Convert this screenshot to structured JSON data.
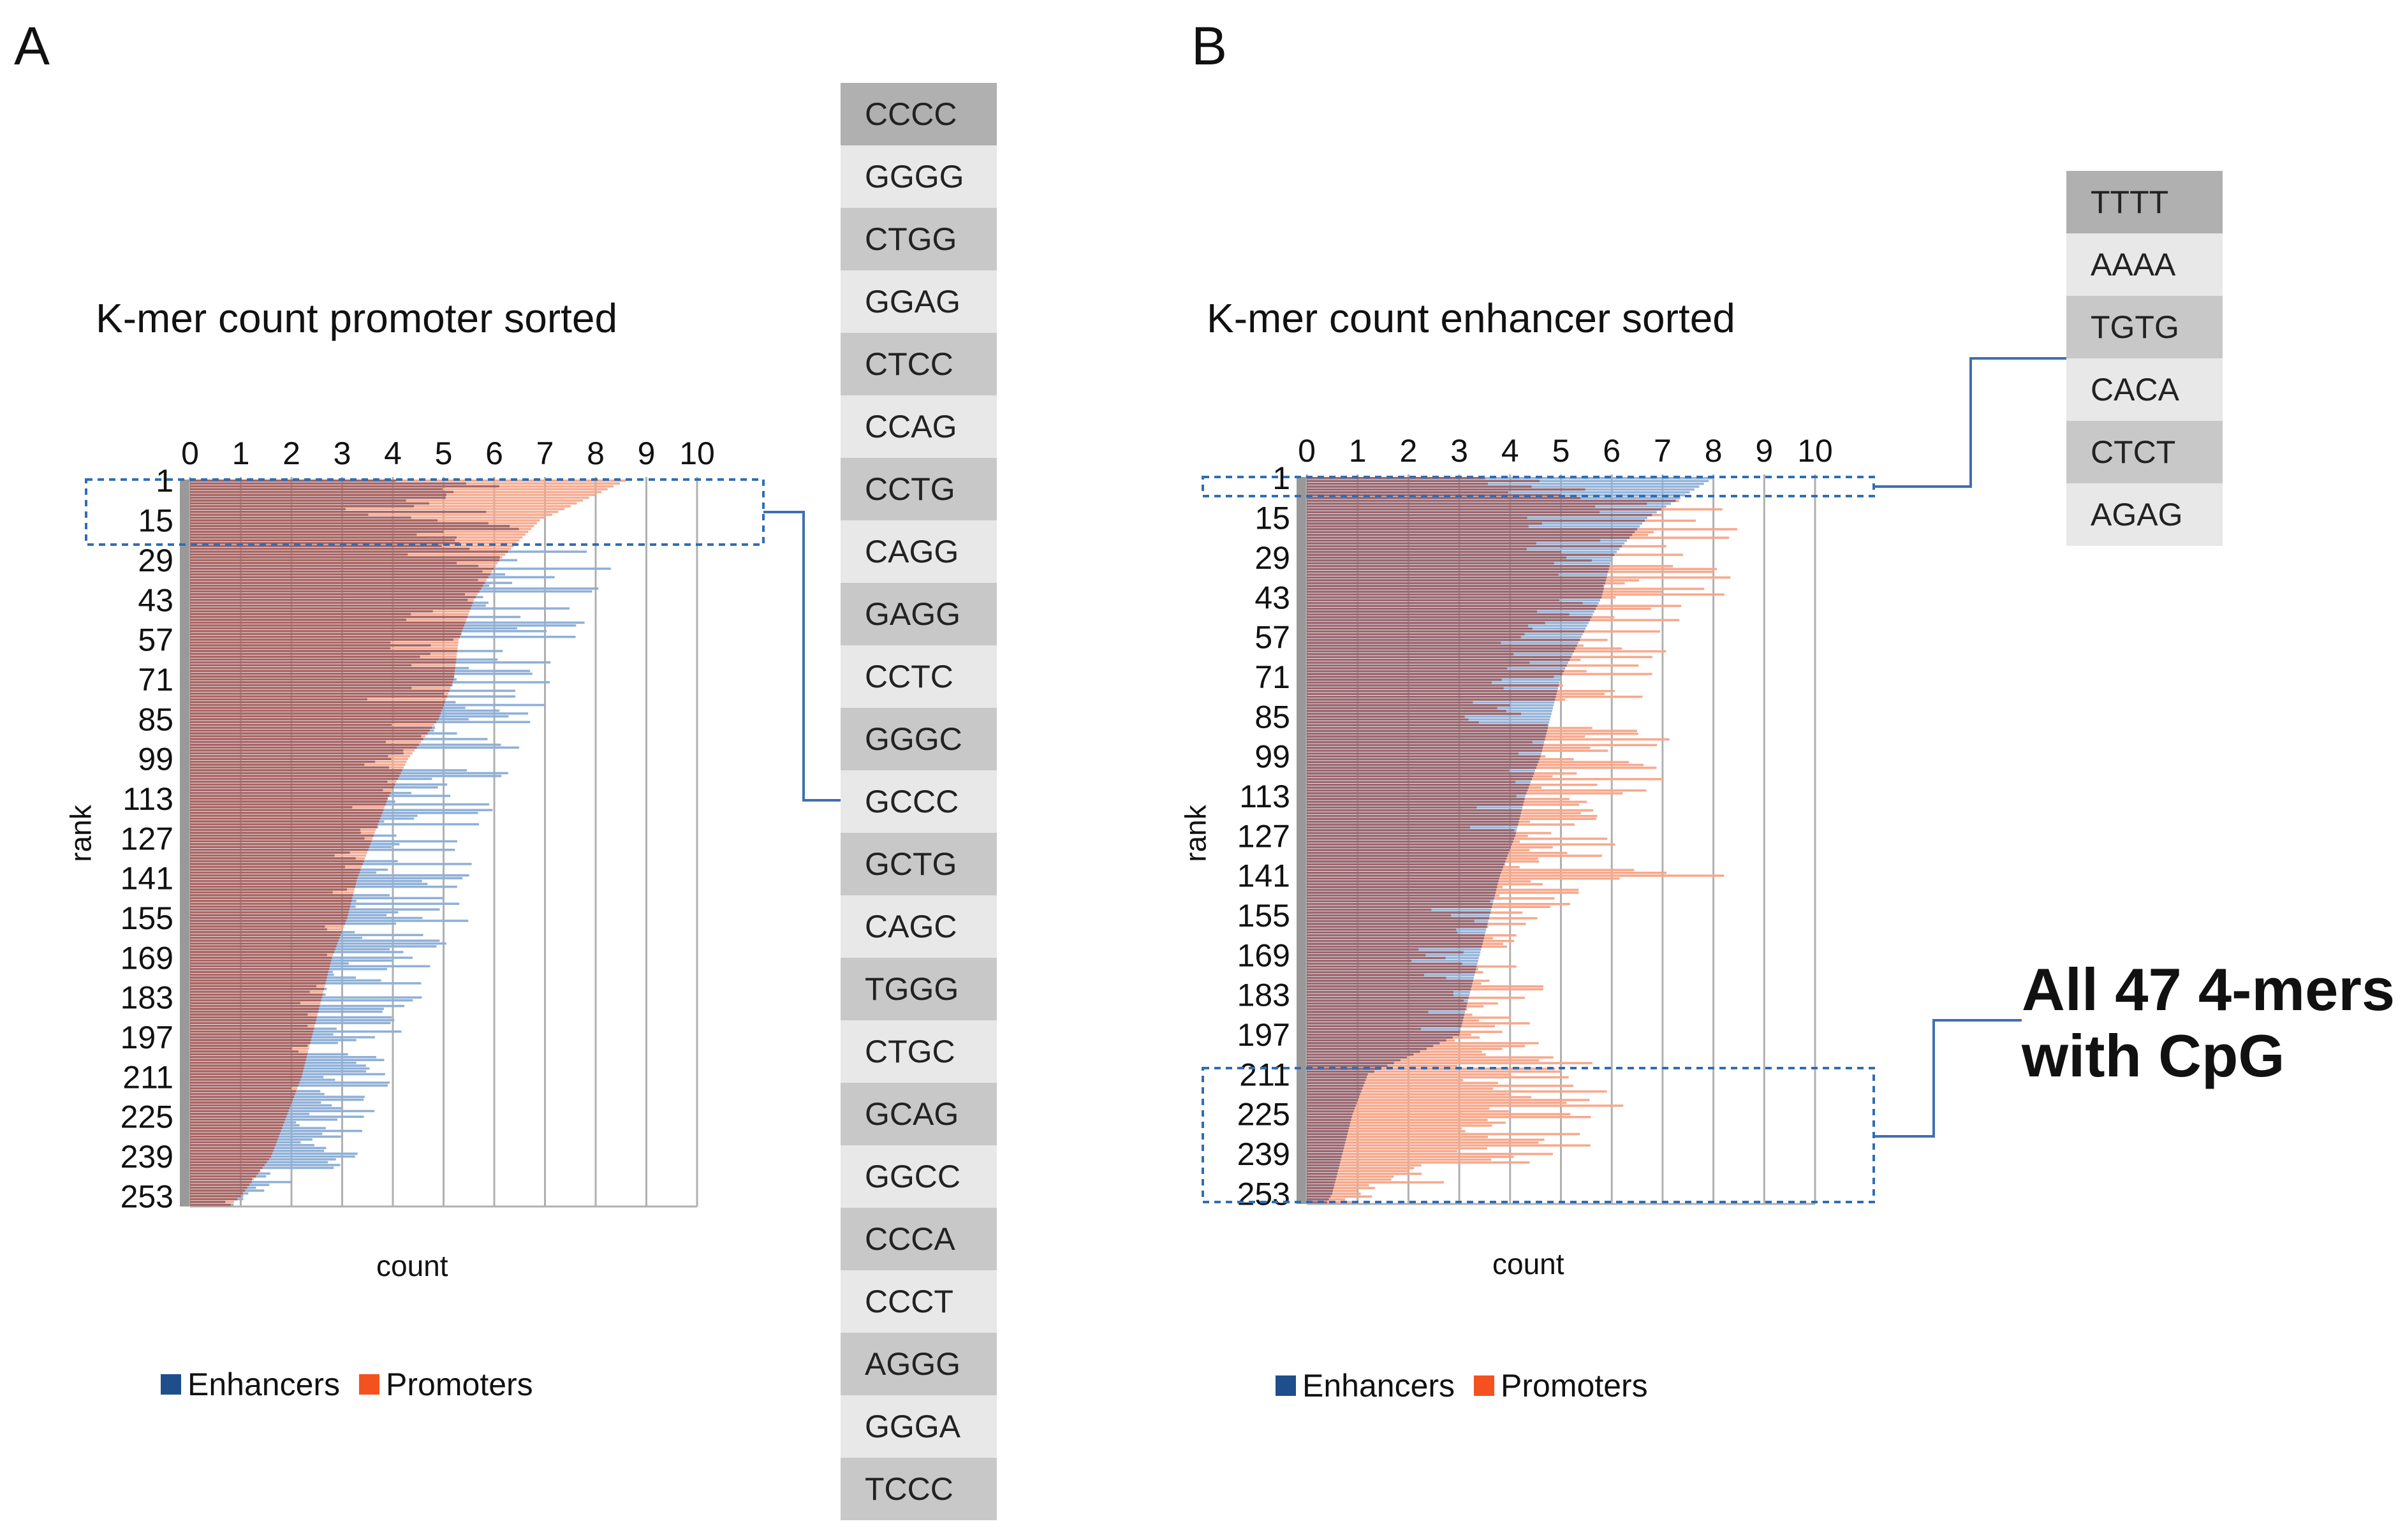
{
  "panels": [
    {
      "letter": "A",
      "title": "K-mer count promoter sorted",
      "xlabel": "count",
      "ylabel": "rank",
      "legend": [
        {
          "label": "Enhancers",
          "color": "#1f4e8c"
        },
        {
          "label": "Promoters",
          "color": "#f4511e"
        }
      ],
      "kmers": [
        "CCCC",
        "GGGG",
        "CTGG",
        "GGAG",
        "CTCC",
        "CCAG",
        "CCTG",
        "CAGG",
        "GAGG",
        "CCTC",
        "GGGC",
        "GCCC",
        "GCTG",
        "CAGC",
        "TGGG",
        "CTGC",
        "GCAG",
        "GGCC",
        "CCCA",
        "CCCT",
        "AGGG",
        "GGGA",
        "TCCC"
      ]
    },
    {
      "letter": "B",
      "title": "K-mer count enhancer sorted",
      "xlabel": "count",
      "ylabel": "rank",
      "legend": [
        {
          "label": "Enhancers",
          "color": "#1f4e8c"
        },
        {
          "label": "Promoters",
          "color": "#f4511e"
        }
      ],
      "kmers": [
        "TTTT",
        "AAAA",
        "TGTG",
        "CACA",
        "CTCT",
        "AGAG"
      ],
      "callout": [
        "All 47 4-mers",
        "with CpG"
      ]
    }
  ],
  "chart_data": [
    {
      "type": "bar",
      "orientation": "horizontal",
      "title": "K-mer count promoter sorted",
      "xlabel": "count",
      "ylabel": "rank",
      "xlim": [
        0,
        10
      ],
      "xticks": [
        0,
        1,
        2,
        3,
        4,
        5,
        6,
        7,
        8,
        9,
        10
      ],
      "yticks": [
        "1",
        "15",
        "29",
        "43",
        "57",
        "71",
        "85",
        "99",
        "113",
        "127",
        "141",
        "155",
        "169",
        "183",
        "197",
        "211",
        "225",
        "239",
        "253"
      ],
      "n_ranks": 256,
      "sorted_by": "Promoters",
      "series": [
        {
          "name": "Promoters",
          "color": "#f4511e",
          "anchor_ranks": [
            1,
            15,
            29,
            43,
            57,
            71,
            85,
            99,
            113,
            127,
            141,
            155,
            169,
            183,
            197,
            211,
            225,
            239,
            253,
            256
          ],
          "anchor_values": [
            8.6,
            6.9,
            6.1,
            5.6,
            5.3,
            5.2,
            4.9,
            4.3,
            3.9,
            3.6,
            3.3,
            3.1,
            2.8,
            2.6,
            2.4,
            2.2,
            1.9,
            1.6,
            1.0,
            0.8
          ]
        },
        {
          "name": "Enhancers",
          "color": "#1f4e8c",
          "anchor_ranks": [
            1,
            15,
            29,
            43,
            57,
            71,
            85,
            99,
            113,
            127,
            141,
            155,
            169,
            183,
            197,
            211,
            225,
            239,
            253,
            256
          ],
          "anchor_values": [
            5.5,
            5.2,
            7.4,
            7.7,
            6.6,
            6.2,
            6.2,
            5.8,
            5.4,
            5.2,
            5.0,
            5.0,
            4.2,
            4.0,
            3.6,
            3.6,
            3.4,
            3.0,
            1.2,
            0.9
          ]
        }
      ]
    },
    {
      "type": "bar",
      "orientation": "horizontal",
      "title": "K-mer count enhancer sorted",
      "xlabel": "count",
      "ylabel": "rank",
      "xlim": [
        0,
        10
      ],
      "xticks": [
        0,
        1,
        2,
        3,
        4,
        5,
        6,
        7,
        8,
        9,
        10
      ],
      "yticks": [
        "1",
        "15",
        "29",
        "43",
        "57",
        "71",
        "85",
        "99",
        "113",
        "127",
        "141",
        "155",
        "169",
        "183",
        "197",
        "211",
        "225",
        "239",
        "253"
      ],
      "n_ranks": 256,
      "sorted_by": "Enhancers",
      "series": [
        {
          "name": "Enhancers",
          "color": "#1f4e8c",
          "anchor_ranks": [
            1,
            15,
            29,
            43,
            57,
            71,
            85,
            99,
            113,
            127,
            141,
            155,
            169,
            183,
            197,
            211,
            225,
            239,
            253,
            256
          ],
          "anchor_values": [
            8.0,
            6.7,
            6.0,
            5.8,
            5.4,
            5.0,
            4.8,
            4.6,
            4.3,
            4.1,
            3.8,
            3.6,
            3.4,
            3.2,
            3.0,
            1.2,
            0.9,
            0.7,
            0.5,
            0.4
          ]
        },
        {
          "name": "Promoters",
          "color": "#f4511e",
          "anchor_ranks": [
            1,
            15,
            29,
            43,
            57,
            71,
            85,
            99,
            113,
            127,
            141,
            155,
            169,
            183,
            197,
            211,
            225,
            239,
            253,
            256
          ],
          "anchor_values": [
            5.7,
            7.6,
            7.4,
            7.6,
            6.6,
            6.4,
            5.4,
            7.0,
            5.8,
            5.2,
            7.2,
            4.0,
            3.5,
            4.4,
            3.6,
            5.4,
            5.6,
            4.8,
            1.4,
            1.0
          ]
        }
      ]
    }
  ]
}
